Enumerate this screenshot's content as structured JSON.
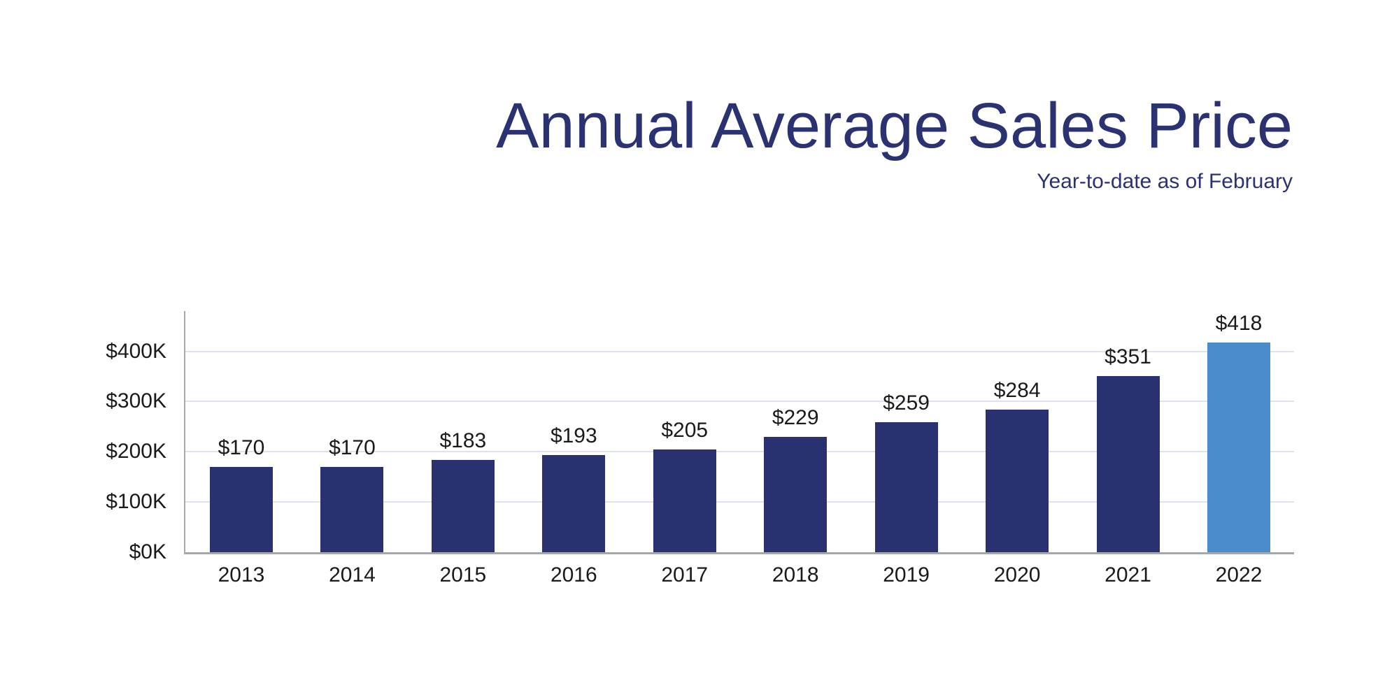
{
  "header": {
    "title": "Annual Average Sales Price",
    "subtitle": "Year-to-date as of February",
    "title_color": "#2b3272"
  },
  "chart_data": {
    "type": "bar",
    "title": "Annual Average Sales Price",
    "subtitle": "Year-to-date as of February",
    "categories": [
      "2013",
      "2014",
      "2015",
      "2016",
      "2017",
      "2018",
      "2019",
      "2020",
      "2021",
      "2022"
    ],
    "values": [
      170,
      170,
      183,
      193,
      205,
      229,
      259,
      284,
      351,
      418
    ],
    "values_display": [
      "$170",
      "$170",
      "$183",
      "$193",
      "$205",
      "$229",
      "$259",
      "$284",
      "$351",
      "$418"
    ],
    "xlabel": "",
    "ylabel": "",
    "ylim": [
      0,
      480
    ],
    "yticks": [
      {
        "value": 0,
        "label": "$0K"
      },
      {
        "value": 100,
        "label": "$100K"
      },
      {
        "value": 200,
        "label": "$200K"
      },
      {
        "value": 300,
        "label": "$300K"
      },
      {
        "value": 400,
        "label": "$400K"
      }
    ],
    "grid": true,
    "legend": false,
    "highlight_category": "2022",
    "colors": {
      "bar": "#2a3170",
      "highlight_bar": "#4b8dca",
      "gridline": "#dee4ee",
      "axis": "#a6a9ac",
      "label": "#1a1a1a",
      "title": "#2b3272"
    }
  }
}
